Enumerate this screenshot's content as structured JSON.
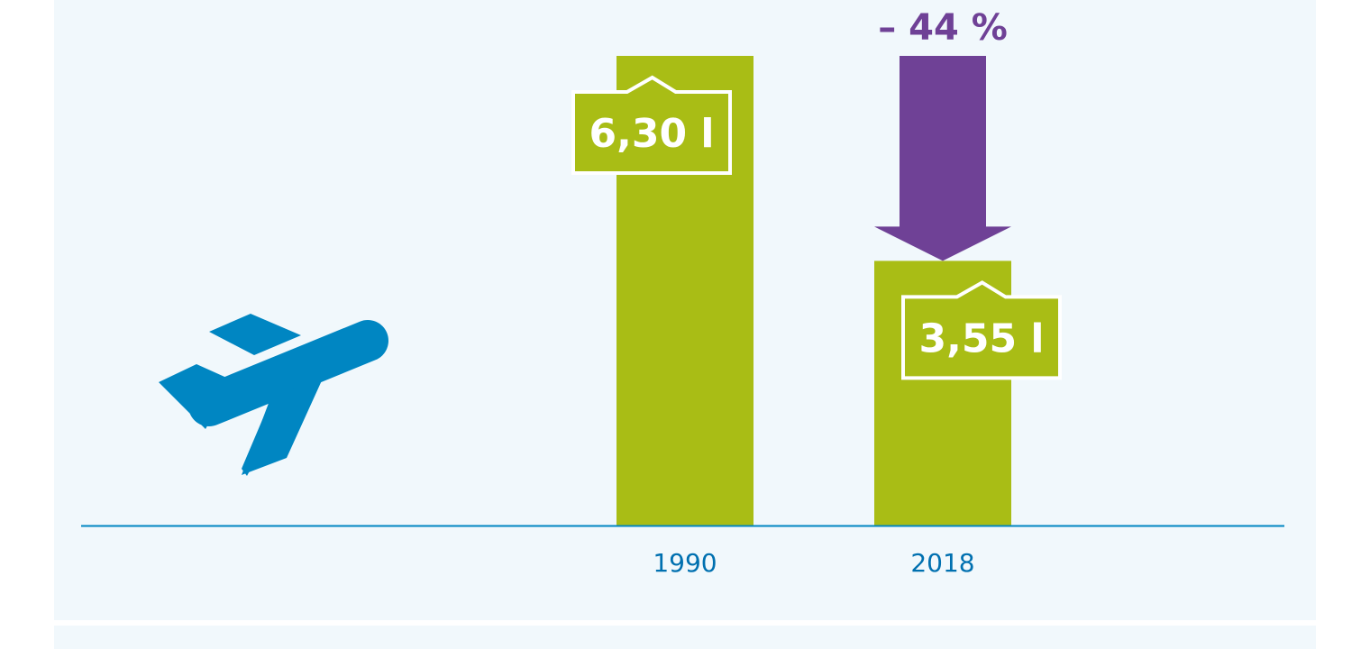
{
  "colors": {
    "background": "#f1f8fc",
    "bar": "#a9bd15",
    "axis": "#0086c2",
    "tick_label": "#0070b0",
    "arrow": "#6f4196",
    "label_box": "#a9bd15",
    "label_border": "#ffffff",
    "plane": "#0086c2"
  },
  "icon": "airplane-takeoff-icon",
  "chart_data": {
    "type": "bar",
    "categories": [
      "1990",
      "2018"
    ],
    "values": [
      6.3,
      3.55
    ],
    "value_labels": [
      "6,30 l",
      "3,55 l"
    ],
    "change_label": "– 44 %",
    "title": "",
    "xlabel": "",
    "ylabel": "",
    "ylim": [
      0,
      6.3
    ],
    "grid": false,
    "legend": "none"
  }
}
